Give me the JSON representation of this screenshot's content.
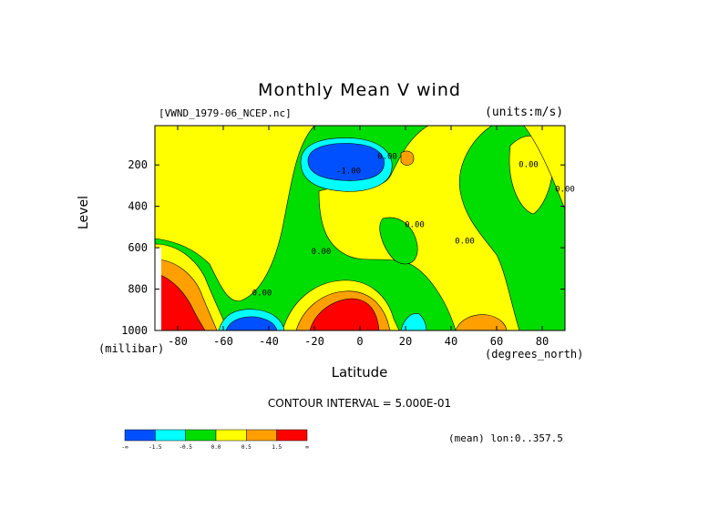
{
  "chart_data": {
    "type": "heatmap",
    "title": "Monthly Mean V wind",
    "dataset": "[VWND_1979-06_NCEP.nc]",
    "units": "(units:m/s)",
    "xlabel": "Latitude",
    "ylabel": "Level",
    "x_units": "(degrees_north)",
    "y_units": "(millibar)",
    "xlim": [
      -90,
      90
    ],
    "ylim": [
      1000,
      10
    ],
    "x_ticks": [
      "-80",
      "-60",
      "-40",
      "-20",
      "0",
      "20",
      "40",
      "60",
      "80"
    ],
    "y_ticks": [
      "200",
      "400",
      "600",
      "800",
      "1000"
    ],
    "contour_interval": "CONTOUR INTERVAL = 5.000E-01",
    "mean_info": "(mean) lon:0..357.5",
    "colorbar": {
      "labels": [
        "-∞",
        "-1.5",
        "-0.5",
        "0.0",
        "0.5",
        "1.5",
        "∞"
      ],
      "colors": [
        "#0050ff",
        "#00ffff",
        "#00dd00",
        "#ffff00",
        "#ffa000",
        "#ff0000"
      ]
    },
    "contour_labels": [
      {
        "text": "-1.00",
        "x": -5,
        "y": 240
      },
      {
        "text": "0.00",
        "x": 12,
        "y": 170
      },
      {
        "text": "0.00",
        "x": 74,
        "y": 210
      },
      {
        "text": "0.00",
        "x": 90,
        "y": 330
      },
      {
        "text": "0.00",
        "x": 24,
        "y": 500
      },
      {
        "text": "0.00",
        "x": 46,
        "y": 580
      },
      {
        "text": "0.00",
        "x": -17,
        "y": 630
      },
      {
        "text": "0.00",
        "x": -43,
        "y": 830
      }
    ]
  }
}
